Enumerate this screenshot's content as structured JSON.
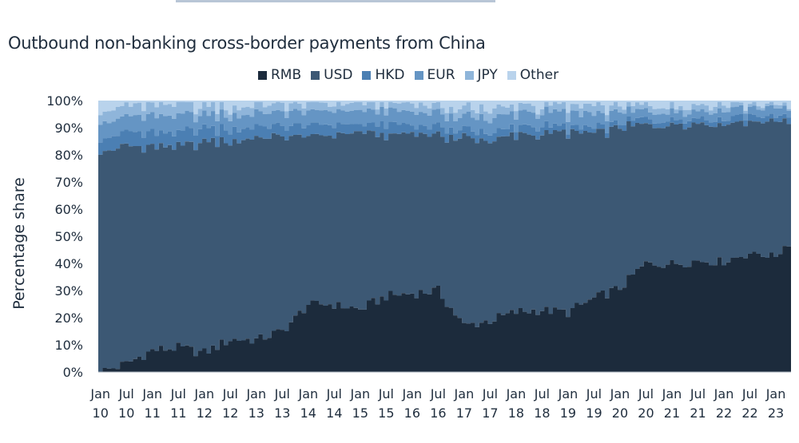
{
  "title": "Outbound non-banking cross-border payments from China",
  "colors": {
    "RMB": "#1c2b3c",
    "USD": "#3c5874",
    "HKD": "#4b7fb3",
    "EUR": "#6595c4",
    "JPY": "#8fb5da",
    "Other": "#b9d3ec"
  },
  "chart_data": {
    "type": "area",
    "title": "Outbound non-banking cross-border payments from China",
    "ylabel": "Percentage share",
    "ylim": [
      0,
      100
    ],
    "y_ticks": [
      "0%",
      "10%",
      "20%",
      "30%",
      "40%",
      "50%",
      "60%",
      "70%",
      "80%",
      "90%",
      "100%"
    ],
    "x_ticks": [
      {
        "m": "Jan",
        "y": "10"
      },
      {
        "m": "Jul",
        "y": "10"
      },
      {
        "m": "Jan",
        "y": "11"
      },
      {
        "m": "Jul",
        "y": "11"
      },
      {
        "m": "Jan",
        "y": "12"
      },
      {
        "m": "Jul",
        "y": "12"
      },
      {
        "m": "Jan",
        "y": "13"
      },
      {
        "m": "Jul",
        "y": "13"
      },
      {
        "m": "Jan",
        "y": "14"
      },
      {
        "m": "Jul",
        "y": "14"
      },
      {
        "m": "Jan",
        "y": "15"
      },
      {
        "m": "Jul",
        "y": "15"
      },
      {
        "m": "Jan",
        "y": "16"
      },
      {
        "m": "Jul",
        "y": "16"
      },
      {
        "m": "Jan",
        "y": "17"
      },
      {
        "m": "Jul",
        "y": "17"
      },
      {
        "m": "Jan",
        "y": "18"
      },
      {
        "m": "Jul",
        "y": "18"
      },
      {
        "m": "Jan",
        "y": "19"
      },
      {
        "m": "Jul",
        "y": "19"
      },
      {
        "m": "Jan",
        "y": "20"
      },
      {
        "m": "Jul",
        "y": "20"
      },
      {
        "m": "Jan",
        "y": "21"
      },
      {
        "m": "Jul",
        "y": "21"
      },
      {
        "m": "Jan",
        "y": "22"
      },
      {
        "m": "Jul",
        "y": "22"
      },
      {
        "m": "Jan",
        "y": "23"
      }
    ],
    "legend": [
      "RMB",
      "USD",
      "HKD",
      "EUR",
      "JPY",
      "Other"
    ],
    "x_anchors": [
      "2010-01",
      "2010-07",
      "2011-01",
      "2011-07",
      "2012-01",
      "2012-07",
      "2013-01",
      "2013-07",
      "2014-01",
      "2014-07",
      "2015-01",
      "2015-07",
      "2016-01",
      "2016-07",
      "2017-01",
      "2017-07",
      "2018-01",
      "2018-07",
      "2019-01",
      "2019-07",
      "2020-01",
      "2020-07",
      "2021-01",
      "2021-07",
      "2022-01",
      "2022-07",
      "2023-01",
      "2023-04"
    ],
    "series": [
      {
        "name": "RMB",
        "values": [
          0,
          3,
          8,
          9,
          7,
          12,
          12,
          15,
          25,
          25,
          23,
          28,
          29,
          30,
          17,
          19,
          22,
          23,
          22,
          27,
          31,
          40,
          40,
          41,
          41,
          44,
          43,
          48
        ]
      },
      {
        "name": "USD",
        "values": [
          81,
          80,
          75,
          74,
          78,
          73,
          75,
          72,
          62,
          63,
          65,
          59,
          59,
          57,
          69,
          66,
          65,
          65,
          66,
          61,
          59,
          51,
          52,
          51,
          51,
          49,
          50,
          45
        ]
      },
      {
        "name": "HKD",
        "values": [
          5,
          5,
          5,
          5,
          5,
          4,
          4,
          4,
          4,
          4,
          3,
          4,
          3,
          3,
          3,
          3,
          3,
          3,
          2,
          2,
          2,
          2,
          2,
          2,
          2,
          2,
          2,
          2
        ]
      },
      {
        "name": "EUR",
        "values": [
          6,
          6,
          6,
          6,
          5,
          5,
          5,
          5,
          5,
          5,
          5,
          5,
          5,
          5,
          5,
          5,
          5,
          5,
          5,
          5,
          4,
          3,
          3,
          3,
          3,
          3,
          3,
          3
        ]
      },
      {
        "name": "JPY",
        "values": [
          4,
          4,
          4,
          4,
          3,
          3,
          3,
          3,
          3,
          2,
          3,
          2,
          3,
          3,
          3,
          3,
          3,
          2,
          3,
          3,
          2,
          2,
          2,
          2,
          2,
          1,
          1,
          1
        ]
      },
      {
        "name": "Other",
        "values": [
          4,
          2,
          2,
          2,
          2,
          3,
          1,
          1,
          1,
          1,
          1,
          2,
          1,
          2,
          3,
          4,
          2,
          2,
          2,
          2,
          2,
          2,
          1,
          1,
          1,
          1,
          1,
          1
        ]
      }
    ]
  }
}
